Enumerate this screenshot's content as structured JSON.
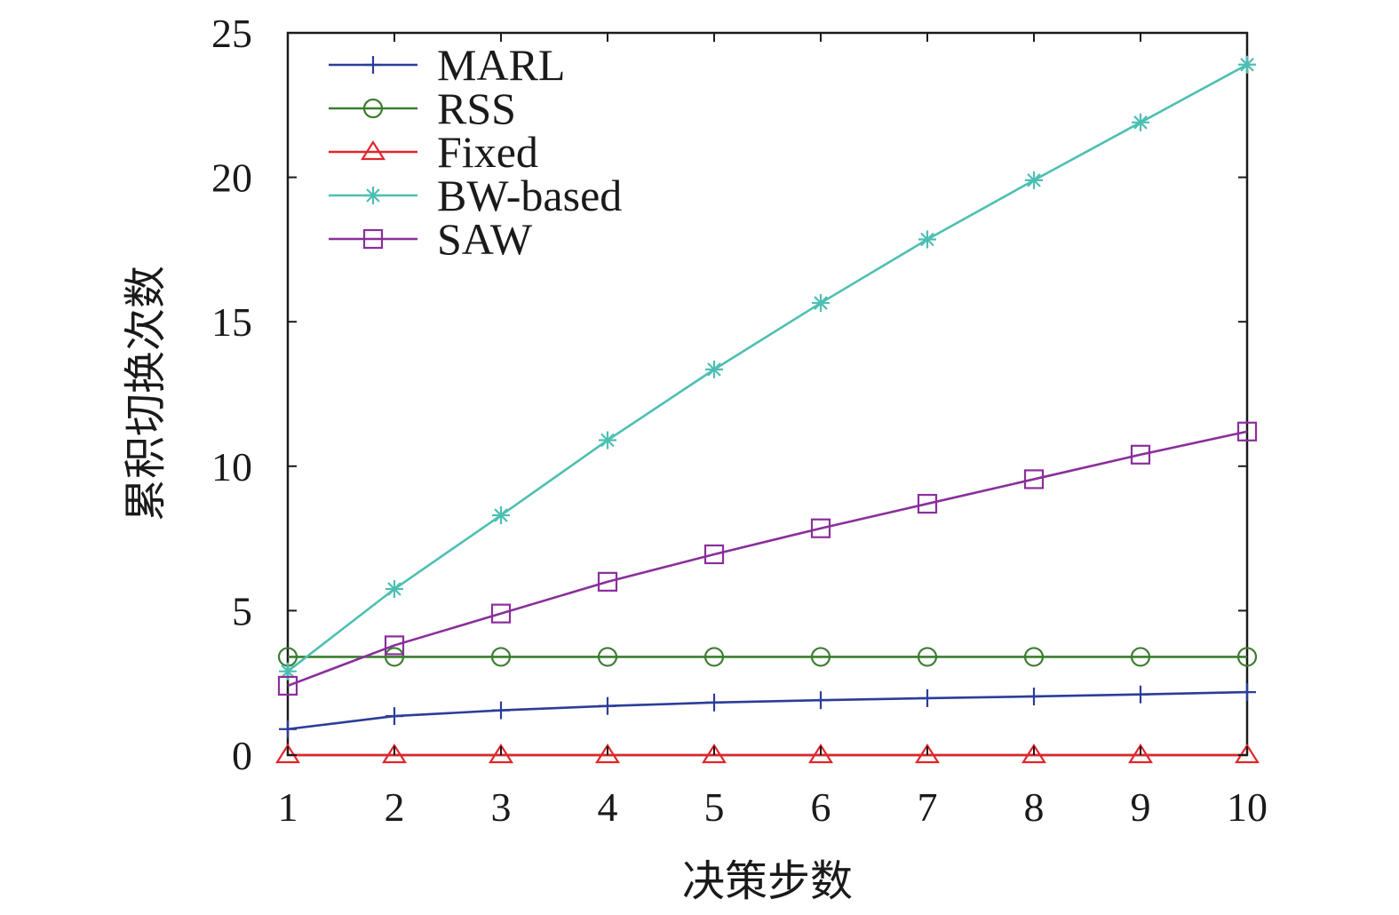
{
  "chart_data": {
    "type": "line",
    "title": "",
    "xlabel": "决策步数",
    "ylabel": "累积切换次数",
    "x": [
      1,
      2,
      3,
      4,
      5,
      6,
      7,
      8,
      9,
      10
    ],
    "xlim": [
      1,
      10
    ],
    "ylim": [
      0,
      25
    ],
    "xticks": [
      "1",
      "2",
      "3",
      "4",
      "5",
      "6",
      "7",
      "8",
      "9",
      "10"
    ],
    "yticks": [
      "0",
      "5",
      "10",
      "15",
      "20",
      "25"
    ],
    "grid": false,
    "legend_position": "top-left",
    "series": [
      {
        "name": "MARL",
        "color": "#2b3d9a",
        "marker": "plus",
        "values": [
          0.9,
          1.35,
          1.55,
          1.7,
          1.82,
          1.9,
          1.97,
          2.03,
          2.1,
          2.18
        ]
      },
      {
        "name": "RSS",
        "color": "#3a7d2e",
        "marker": "circle",
        "values": [
          3.4,
          3.4,
          3.4,
          3.4,
          3.4,
          3.4,
          3.4,
          3.4,
          3.4,
          3.4
        ]
      },
      {
        "name": "Fixed",
        "color": "#e0262b",
        "marker": "triangle",
        "values": [
          0,
          0,
          0,
          0,
          0,
          0,
          0,
          0,
          0,
          0
        ]
      },
      {
        "name": "BW-based",
        "color": "#4dbfb2",
        "marker": "asterisk",
        "values": [
          2.9,
          5.75,
          8.3,
          10.9,
          13.35,
          15.65,
          17.85,
          19.9,
          21.9,
          23.9
        ]
      },
      {
        "name": "SAW",
        "color": "#8a2e9b",
        "marker": "square",
        "values": [
          2.4,
          3.8,
          4.9,
          6.0,
          6.95,
          7.85,
          8.7,
          9.55,
          10.4,
          11.2
        ]
      }
    ]
  }
}
